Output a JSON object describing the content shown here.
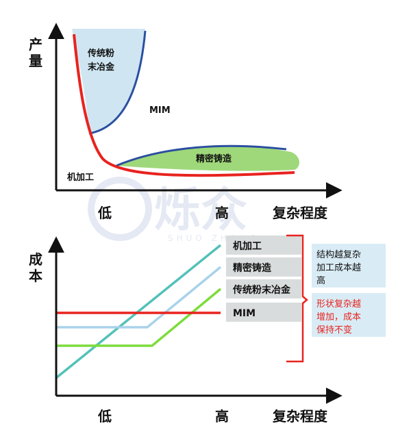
{
  "top_chart": {
    "y_axis_label": "产量",
    "x_axis_label": "复杂程度",
    "x_low": "低",
    "x_high": "高",
    "region_labels": {
      "powder_metallurgy_line1": "传统粉",
      "powder_metallurgy_line2": "末冶金",
      "mim": "MIM",
      "precision_casting": "精密铸造",
      "machining": "机加工"
    }
  },
  "bottom_chart": {
    "y_axis_label": "成本",
    "x_axis_label": "复杂程度",
    "x_low": "低",
    "x_high": "高",
    "legend_boxes": [
      "机加工",
      "精密铸造",
      "传统粉末冶金",
      "MIM"
    ],
    "note_blue_lines": [
      "结构越复杂",
      "加工成本越",
      "高"
    ],
    "note_red_lines": [
      "形状复杂越",
      "增加，成本",
      "保持不变"
    ]
  },
  "watermark": {
    "brand": "烁众",
    "pinyin": "SHUO ZHONG"
  },
  "colors": {
    "machining": "#e8231f",
    "casting_fill": "#9fd87a",
    "powder_fill": "#cfe6f2",
    "mim_line": "#2b4fa0",
    "teal_line": "#52c1b8",
    "lightblue_line": "#a9d2ea",
    "green_line": "#7ddc3d",
    "note_blue_bg": "#d9ecf5",
    "note_red_text": "#e8231f"
  }
}
